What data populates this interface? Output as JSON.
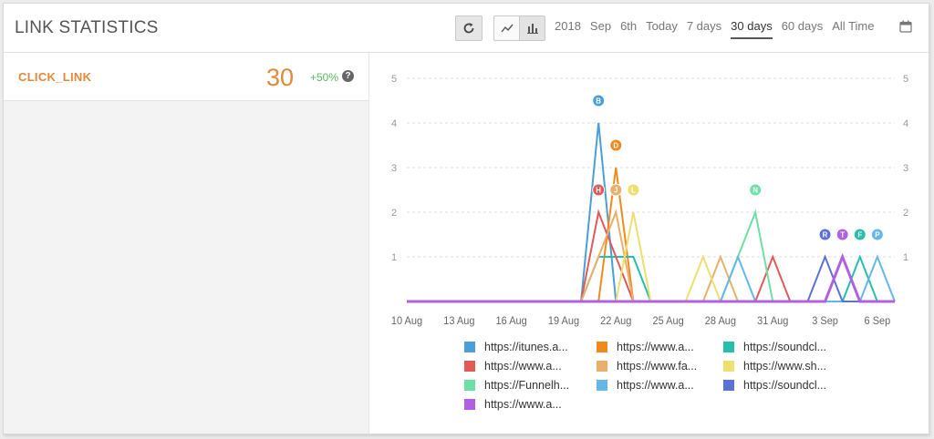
{
  "header": {
    "title": "LINK STATISTICS",
    "ranges": [
      "2018",
      "Sep",
      "6th",
      "Today",
      "7 days",
      "30 days",
      "60 days",
      "All Time"
    ],
    "active_range": "30 days"
  },
  "metric": {
    "name": "CLICK_LINK",
    "value": "30",
    "change": "+50%",
    "help": "?"
  },
  "chart_data": {
    "type": "line",
    "x": [
      "10 Aug",
      "11 Aug",
      "12 Aug",
      "13 Aug",
      "14 Aug",
      "15 Aug",
      "16 Aug",
      "17 Aug",
      "18 Aug",
      "19 Aug",
      "20 Aug",
      "21 Aug",
      "22 Aug",
      "23 Aug",
      "24 Aug",
      "25 Aug",
      "26 Aug",
      "27 Aug",
      "28 Aug",
      "29 Aug",
      "30 Aug",
      "31 Aug",
      "1 Sep",
      "2 Sep",
      "3 Sep",
      "4 Sep",
      "5 Sep",
      "6 Sep",
      "7 Sep"
    ],
    "x_tick_labels": [
      "10 Aug",
      "13 Aug",
      "16 Aug",
      "19 Aug",
      "22 Aug",
      "25 Aug",
      "28 Aug",
      "31 Aug",
      "3 Sep",
      "6 Sep"
    ],
    "ylim": [
      0,
      5
    ],
    "y_ticks": [
      1,
      2,
      3,
      4,
      5
    ],
    "grid": true,
    "legend_position": "bottom",
    "series": [
      {
        "name": "https://itunes.a...",
        "color": "#4a9fd9",
        "values": [
          0,
          0,
          0,
          0,
          0,
          0,
          0,
          0,
          0,
          0,
          0,
          4,
          0,
          0,
          0,
          0,
          0,
          0,
          0,
          0,
          0,
          0,
          0,
          0,
          0,
          0,
          0,
          0,
          0
        ],
        "marker": "B",
        "marker_x": "21 Aug",
        "marker_y": 4.5
      },
      {
        "name": "https://www.a...",
        "color": "#f08a1c",
        "values": [
          0,
          0,
          0,
          0,
          0,
          0,
          0,
          0,
          0,
          0,
          0,
          0,
          3,
          0,
          0,
          0,
          0,
          0,
          0,
          0,
          0,
          0,
          0,
          0,
          0,
          0,
          0,
          0,
          0
        ],
        "marker": "D",
        "marker_x": "22 Aug",
        "marker_y": 3.5
      },
      {
        "name": "https://soundcl...",
        "color": "#26bfae",
        "values": [
          0,
          0,
          0,
          0,
          0,
          0,
          0,
          0,
          0,
          0,
          0,
          1,
          1,
          1,
          0,
          0,
          0,
          0,
          0,
          0,
          0,
          0,
          0,
          0,
          0,
          0,
          1,
          0,
          0
        ],
        "marker": "F",
        "marker_x": "5 Sep",
        "marker_y": 1.5
      },
      {
        "name": "https://www.a...",
        "color": "#e05a5a",
        "values": [
          0,
          0,
          0,
          0,
          0,
          0,
          0,
          0,
          0,
          0,
          0,
          2,
          1,
          0,
          0,
          0,
          0,
          0,
          0,
          0,
          0,
          1,
          0,
          0,
          0,
          0,
          0,
          0,
          0
        ],
        "marker": "H",
        "marker_x": "21 Aug",
        "marker_y": 2.5
      },
      {
        "name": "https://www.fa...",
        "color": "#e8b06a",
        "values": [
          0,
          0,
          0,
          0,
          0,
          0,
          0,
          0,
          0,
          0,
          0,
          1,
          2,
          0,
          0,
          0,
          0,
          0,
          1,
          0,
          0,
          0,
          0,
          0,
          0,
          0,
          0,
          0,
          0
        ],
        "marker": "J",
        "marker_x": "22 Aug",
        "marker_y": 2.5
      },
      {
        "name": "https://www.sh...",
        "color": "#ede070",
        "values": [
          0,
          0,
          0,
          0,
          0,
          0,
          0,
          0,
          0,
          0,
          0,
          0,
          0,
          2,
          0,
          0,
          0,
          1,
          0,
          0,
          0,
          0,
          0,
          0,
          0,
          0,
          0,
          0,
          0
        ],
        "marker": "L",
        "marker_x": "23 Aug",
        "marker_y": 2.5
      },
      {
        "name": "https://Funnelh...",
        "color": "#6ee0a5",
        "values": [
          0,
          0,
          0,
          0,
          0,
          0,
          0,
          0,
          0,
          0,
          0,
          0,
          0,
          0,
          0,
          0,
          0,
          0,
          0,
          1,
          2,
          0,
          0,
          0,
          0,
          0,
          0,
          0,
          0
        ],
        "marker": "N",
        "marker_x": "30 Aug",
        "marker_y": 2.5
      },
      {
        "name": "https://www.a...",
        "color": "#63b8e8",
        "values": [
          0,
          0,
          0,
          0,
          0,
          0,
          0,
          0,
          0,
          0,
          0,
          0,
          0,
          0,
          0,
          0,
          0,
          0,
          0,
          1,
          0,
          0,
          0,
          0,
          0,
          0,
          0,
          1,
          0
        ],
        "marker": "P",
        "marker_x": "6 Sep",
        "marker_y": 1.5
      },
      {
        "name": "https://soundcl...",
        "color": "#5a72d8",
        "values": [
          0,
          0,
          0,
          0,
          0,
          0,
          0,
          0,
          0,
          0,
          0,
          0,
          0,
          0,
          0,
          0,
          0,
          0,
          0,
          0,
          0,
          0,
          0,
          0,
          1,
          0,
          0,
          0,
          0
        ],
        "marker": "R",
        "marker_x": "3 Sep",
        "marker_y": 1.5
      },
      {
        "name": "https://www.a...",
        "color": "#b060e0",
        "values": [
          0,
          0,
          0,
          0,
          0,
          0,
          0,
          0,
          0,
          0,
          0,
          0,
          0,
          0,
          0,
          0,
          0,
          0,
          0,
          0,
          0,
          0,
          0,
          0,
          0,
          1,
          0,
          0,
          0
        ],
        "marker": "T",
        "marker_x": "4 Sep",
        "marker_y": 1.5
      }
    ]
  }
}
